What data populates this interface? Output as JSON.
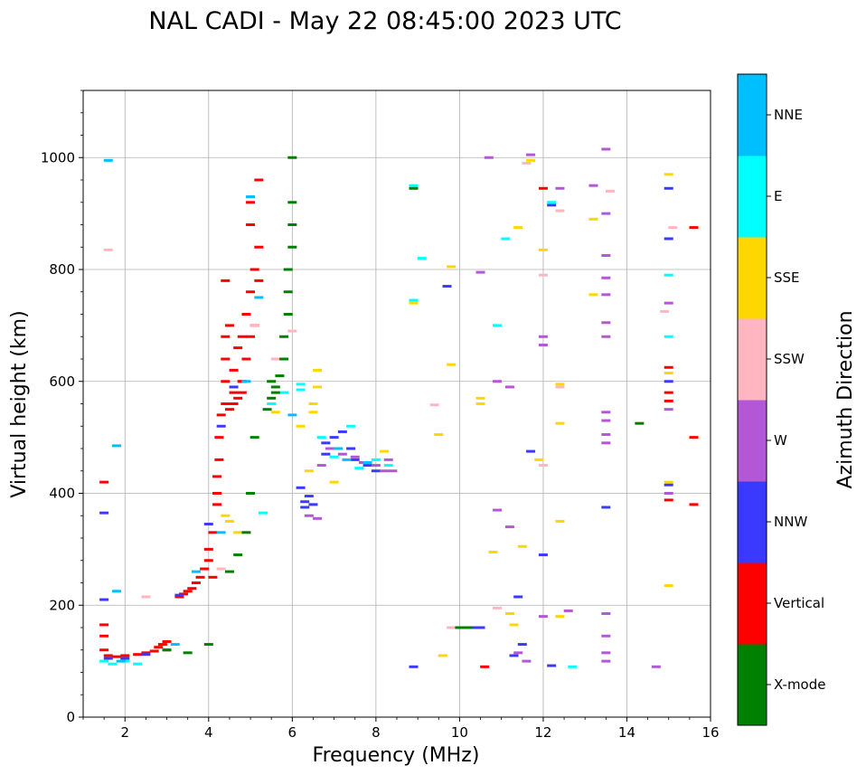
{
  "chart_data": {
    "type": "scatter",
    "title": "NAL CADI - May 22 08:45:00 2023 UTC",
    "xlabel": "Frequency (MHz)",
    "ylabel": "Virtual height (km)",
    "xlim": [
      1,
      16
    ],
    "ylim": [
      0,
      1120
    ],
    "grid": true,
    "x_ticks": [
      2,
      4,
      6,
      8,
      10,
      12,
      14,
      16
    ],
    "y_ticks": [
      0,
      200,
      400,
      600,
      800,
      1000
    ],
    "x_tick_labels": [
      "2",
      "4",
      "6",
      "8",
      "10",
      "12",
      "14",
      "16"
    ],
    "y_tick_labels": [
      "0",
      "200",
      "400",
      "600",
      "800",
      "1000"
    ],
    "colorbar": {
      "label": "Azimuth Direction",
      "categories": [
        "X-mode",
        "Vertical",
        "NNW",
        "W",
        "SSW",
        "SSE",
        "E",
        "NNE"
      ],
      "colors": [
        "#008000",
        "#ff0000",
        "#3a3aff",
        "#b457d6",
        "#ffb6c1",
        "#ffd700",
        "#00ffff",
        "#00bfff"
      ]
    },
    "series": [
      {
        "name": "Vertical",
        "color": "#ff0000",
        "points": [
          [
            1.5,
            420
          ],
          [
            1.5,
            165
          ],
          [
            1.5,
            145
          ],
          [
            1.5,
            120
          ],
          [
            1.6,
            110
          ],
          [
            1.8,
            108
          ],
          [
            2.0,
            110
          ],
          [
            2.3,
            112
          ],
          [
            2.5,
            115
          ],
          [
            2.7,
            118
          ],
          [
            2.8,
            125
          ],
          [
            2.9,
            130
          ],
          [
            3.0,
            135
          ],
          [
            3.0,
            120
          ],
          [
            3.3,
            215
          ],
          [
            3.4,
            220
          ],
          [
            3.5,
            225
          ],
          [
            3.6,
            230
          ],
          [
            3.7,
            240
          ],
          [
            3.8,
            250
          ],
          [
            3.9,
            265
          ],
          [
            4.0,
            280
          ],
          [
            4.0,
            300
          ],
          [
            4.1,
            330
          ],
          [
            4.1,
            250
          ],
          [
            4.2,
            380
          ],
          [
            4.2,
            400
          ],
          [
            4.2,
            430
          ],
          [
            4.25,
            460
          ],
          [
            4.25,
            500
          ],
          [
            4.3,
            540
          ],
          [
            4.4,
            560
          ],
          [
            4.4,
            600
          ],
          [
            4.4,
            640
          ],
          [
            4.4,
            680
          ],
          [
            4.5,
            550
          ],
          [
            4.6,
            560
          ],
          [
            4.6,
            580
          ],
          [
            4.7,
            570
          ],
          [
            4.8,
            600
          ],
          [
            4.9,
            640
          ],
          [
            4.4,
            780
          ],
          [
            4.5,
            700
          ],
          [
            4.6,
            620
          ],
          [
            4.7,
            660
          ],
          [
            4.8,
            680
          ],
          [
            4.9,
            720
          ],
          [
            5.0,
            760
          ],
          [
            5.0,
            680
          ],
          [
            5.1,
            700
          ],
          [
            5.1,
            800
          ],
          [
            5.2,
            840
          ],
          [
            5.2,
            960
          ],
          [
            5.2,
            780
          ],
          [
            5.0,
            880
          ],
          [
            5.0,
            920
          ],
          [
            4.8,
            600
          ],
          [
            4.8,
            580
          ],
          [
            10.6,
            90
          ],
          [
            15.0,
            625
          ],
          [
            15.0,
            580
          ],
          [
            15.0,
            565
          ],
          [
            15.0,
            388
          ],
          [
            15.6,
            500
          ],
          [
            15.6,
            875
          ],
          [
            15.6,
            380
          ],
          [
            12.0,
            945
          ]
        ]
      },
      {
        "name": "NNW",
        "color": "#3a3aff",
        "points": [
          [
            1.5,
            365
          ],
          [
            1.5,
            210
          ],
          [
            1.6,
            105
          ],
          [
            2.0,
            105
          ],
          [
            2.5,
            112
          ],
          [
            3.3,
            218
          ],
          [
            4.0,
            345
          ],
          [
            4.3,
            520
          ],
          [
            4.6,
            590
          ],
          [
            6.2,
            410
          ],
          [
            6.3,
            385
          ],
          [
            6.3,
            375
          ],
          [
            6.4,
            395
          ],
          [
            6.5,
            380
          ],
          [
            6.8,
            470
          ],
          [
            6.8,
            490
          ],
          [
            7.0,
            500
          ],
          [
            7.2,
            510
          ],
          [
            7.4,
            480
          ],
          [
            7.5,
            460
          ],
          [
            7.8,
            450
          ],
          [
            8.0,
            440
          ],
          [
            8.9,
            90
          ],
          [
            9.7,
            770
          ],
          [
            10.3,
            160
          ],
          [
            10.5,
            160
          ],
          [
            11.3,
            110
          ],
          [
            11.5,
            130
          ],
          [
            12.0,
            290
          ],
          [
            12.2,
            92
          ],
          [
            12.2,
            915
          ],
          [
            13.5,
            375
          ],
          [
            15.0,
            855
          ],
          [
            15.0,
            415
          ],
          [
            15.0,
            945
          ],
          [
            11.4,
            215
          ],
          [
            15.0,
            600
          ],
          [
            11.7,
            475
          ]
        ]
      },
      {
        "name": "W",
        "color": "#b457d6",
        "points": [
          [
            6.4,
            360
          ],
          [
            6.6,
            355
          ],
          [
            6.7,
            450
          ],
          [
            6.9,
            480
          ],
          [
            7.2,
            470
          ],
          [
            7.5,
            465
          ],
          [
            7.7,
            455
          ],
          [
            8.0,
            450
          ],
          [
            8.2,
            440
          ],
          [
            8.4,
            440
          ],
          [
            8.3,
            460
          ],
          [
            10.5,
            795
          ],
          [
            10.7,
            1000
          ],
          [
            10.9,
            600
          ],
          [
            10.9,
            370
          ],
          [
            11.2,
            340
          ],
          [
            11.2,
            590
          ],
          [
            11.4,
            115
          ],
          [
            11.6,
            100
          ],
          [
            11.7,
            1005
          ],
          [
            12.0,
            665
          ],
          [
            12.0,
            180
          ],
          [
            12.4,
            945
          ],
          [
            12.6,
            190
          ],
          [
            13.2,
            950
          ],
          [
            13.5,
            1015
          ],
          [
            13.5,
            900
          ],
          [
            13.5,
            825
          ],
          [
            13.5,
            785
          ],
          [
            13.5,
            755
          ],
          [
            13.5,
            705
          ],
          [
            13.5,
            680
          ],
          [
            13.5,
            545
          ],
          [
            13.5,
            530
          ],
          [
            13.5,
            505
          ],
          [
            13.5,
            490
          ],
          [
            13.5,
            145
          ],
          [
            13.5,
            115
          ],
          [
            13.5,
            100
          ],
          [
            13.5,
            185
          ],
          [
            14.7,
            90
          ],
          [
            15.0,
            740
          ],
          [
            15.0,
            550
          ],
          [
            15.0,
            400
          ],
          [
            12.0,
            680
          ]
        ]
      },
      {
        "name": "SSW",
        "color": "#ffb6c1",
        "points": [
          [
            1.6,
            835
          ],
          [
            2.5,
            215
          ],
          [
            4.3,
            265
          ],
          [
            5.1,
            700
          ],
          [
            5.6,
            640
          ],
          [
            6.0,
            690
          ],
          [
            9.4,
            558
          ],
          [
            9.8,
            160
          ],
          [
            10.9,
            195
          ],
          [
            11.6,
            990
          ],
          [
            12.0,
            790
          ],
          [
            12.0,
            450
          ],
          [
            12.4,
            905
          ],
          [
            12.4,
            590
          ],
          [
            13.6,
            940
          ],
          [
            14.9,
            725
          ],
          [
            15.1,
            875
          ]
        ]
      },
      {
        "name": "SSE",
        "color": "#ffd700",
        "points": [
          [
            4.4,
            360
          ],
          [
            4.5,
            350
          ],
          [
            4.7,
            330
          ],
          [
            5.6,
            545
          ],
          [
            6.2,
            520
          ],
          [
            6.4,
            440
          ],
          [
            6.5,
            560
          ],
          [
            6.5,
            545
          ],
          [
            6.6,
            620
          ],
          [
            6.6,
            590
          ],
          [
            7.0,
            420
          ],
          [
            8.2,
            475
          ],
          [
            8.9,
            740
          ],
          [
            9.5,
            505
          ],
          [
            9.6,
            110
          ],
          [
            9.8,
            805
          ],
          [
            9.8,
            630
          ],
          [
            10.5,
            560
          ],
          [
            10.5,
            570
          ],
          [
            10.8,
            295
          ],
          [
            11.2,
            185
          ],
          [
            11.3,
            165
          ],
          [
            11.4,
            875
          ],
          [
            11.5,
            305
          ],
          [
            11.7,
            995
          ],
          [
            11.9,
            460
          ],
          [
            12.0,
            835
          ],
          [
            12.4,
            595
          ],
          [
            12.4,
            525
          ],
          [
            12.4,
            350
          ],
          [
            12.4,
            180
          ],
          [
            13.2,
            890
          ],
          [
            13.2,
            755
          ],
          [
            15.0,
            970
          ],
          [
            15.0,
            615
          ],
          [
            15.0,
            420
          ],
          [
            15.0,
            235
          ]
        ]
      },
      {
        "name": "E",
        "color": "#00ffff",
        "points": [
          [
            1.5,
            100
          ],
          [
            1.7,
            95
          ],
          [
            2.0,
            100
          ],
          [
            2.3,
            95
          ],
          [
            5.5,
            560
          ],
          [
            5.8,
            580
          ],
          [
            6.2,
            595
          ],
          [
            6.2,
            585
          ],
          [
            6.7,
            500
          ],
          [
            7.0,
            465
          ],
          [
            7.4,
            520
          ],
          [
            7.6,
            445
          ],
          [
            8.0,
            460
          ],
          [
            8.3,
            450
          ],
          [
            8.9,
            950
          ],
          [
            8.9,
            745
          ],
          [
            9.1,
            820
          ],
          [
            10.9,
            700
          ],
          [
            11.1,
            855
          ],
          [
            12.2,
            920
          ],
          [
            12.7,
            90
          ],
          [
            15.0,
            680
          ],
          [
            15.0,
            790
          ],
          [
            5.3,
            365
          ]
        ]
      },
      {
        "name": "NNE",
        "color": "#00bfff",
        "points": [
          [
            1.6,
            995
          ],
          [
            1.8,
            485
          ],
          [
            1.8,
            225
          ],
          [
            1.9,
            100
          ],
          [
            3.2,
            130
          ],
          [
            3.7,
            260
          ],
          [
            4.3,
            330
          ],
          [
            4.9,
            600
          ],
          [
            5.0,
            930
          ],
          [
            5.2,
            750
          ],
          [
            6.0,
            540
          ],
          [
            7.1,
            480
          ],
          [
            7.3,
            460
          ],
          [
            7.8,
            455
          ]
        ]
      },
      {
        "name": "X-mode",
        "color": "#008000",
        "points": [
          [
            3.0,
            120
          ],
          [
            3.5,
            115
          ],
          [
            4.0,
            130
          ],
          [
            4.5,
            260
          ],
          [
            4.7,
            290
          ],
          [
            4.9,
            330
          ],
          [
            5.0,
            400
          ],
          [
            5.1,
            500
          ],
          [
            5.4,
            550
          ],
          [
            5.5,
            570
          ],
          [
            5.6,
            590
          ],
          [
            5.7,
            610
          ],
          [
            5.8,
            640
          ],
          [
            5.8,
            680
          ],
          [
            5.9,
            720
          ],
          [
            5.9,
            760
          ],
          [
            5.9,
            800
          ],
          [
            6.0,
            840
          ],
          [
            6.0,
            880
          ],
          [
            6.0,
            920
          ],
          [
            6.0,
            1000
          ],
          [
            5.5,
            600
          ],
          [
            5.6,
            580
          ],
          [
            8.9,
            945
          ],
          [
            10.0,
            160
          ],
          [
            10.2,
            160
          ],
          [
            14.3,
            525
          ]
        ]
      }
    ]
  }
}
